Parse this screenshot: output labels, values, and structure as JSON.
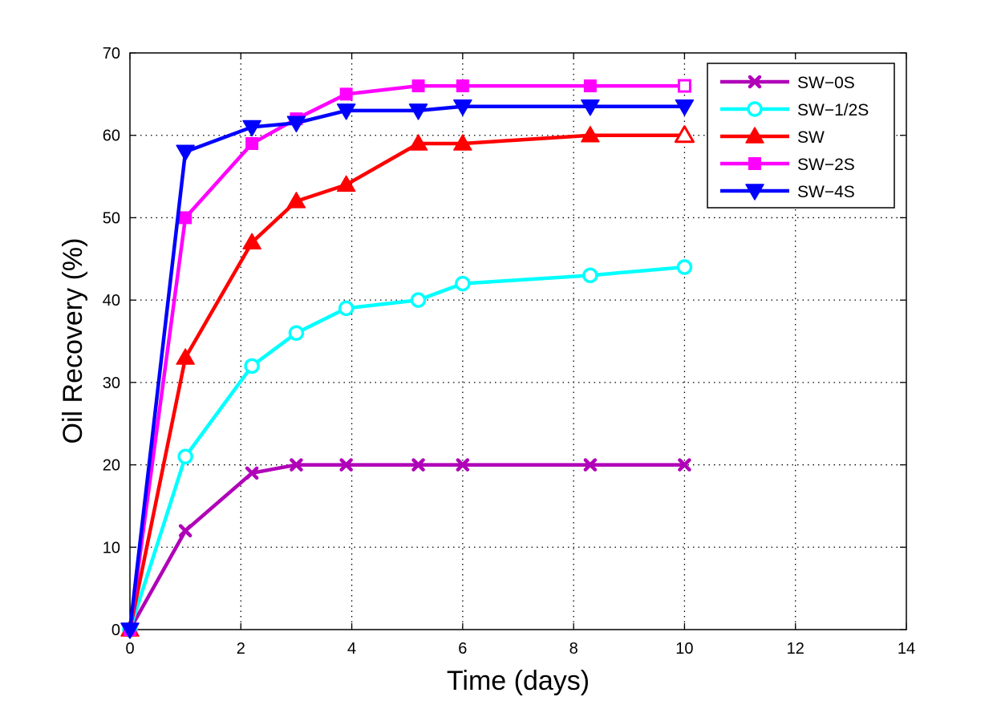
{
  "chart_data": {
    "type": "line",
    "title": "",
    "xlabel": "Time (days)",
    "ylabel": "Oil Recovery (%)",
    "xlim": [
      0,
      14
    ],
    "ylim": [
      0,
      70
    ],
    "xticks": [
      0,
      2,
      4,
      6,
      8,
      10,
      12,
      14
    ],
    "yticks": [
      0,
      10,
      20,
      30,
      40,
      50,
      60,
      70
    ],
    "xtick_labels": [
      "0",
      "2",
      "4",
      "6",
      "8",
      "10",
      "12",
      "14"
    ],
    "ytick_labels": [
      "0",
      "10",
      "20",
      "30",
      "40",
      "50",
      "60",
      "70"
    ],
    "grid": true,
    "grid_style": "dotted",
    "legend_position": "top-right",
    "x": [
      0,
      1,
      2.2,
      3,
      3.9,
      5.2,
      6,
      8.3,
      10
    ],
    "series": [
      {
        "name": "SW−0S",
        "color": "#b000b8",
        "marker": "x",
        "values": [
          0,
          12,
          19,
          20,
          20,
          20,
          20,
          20,
          20
        ]
      },
      {
        "name": "SW−1/2S",
        "color": "#00ffff",
        "marker": "circle",
        "values": [
          0,
          21,
          32,
          36,
          39,
          40,
          42,
          43,
          44
        ]
      },
      {
        "name": "SW",
        "color": "#ff0000",
        "marker": "triangle-up",
        "values": [
          0,
          33,
          47,
          52,
          54,
          59,
          59,
          60,
          60
        ]
      },
      {
        "name": "SW−2S",
        "color": "#ff00ff",
        "marker": "square",
        "values": [
          0,
          50,
          59,
          62,
          65,
          66,
          66,
          66,
          66
        ]
      },
      {
        "name": "SW−4S",
        "color": "#0000ff",
        "marker": "triangle-down",
        "values": [
          0,
          58,
          61,
          61.5,
          63,
          63,
          63.5,
          63.5,
          63.5
        ]
      }
    ]
  }
}
